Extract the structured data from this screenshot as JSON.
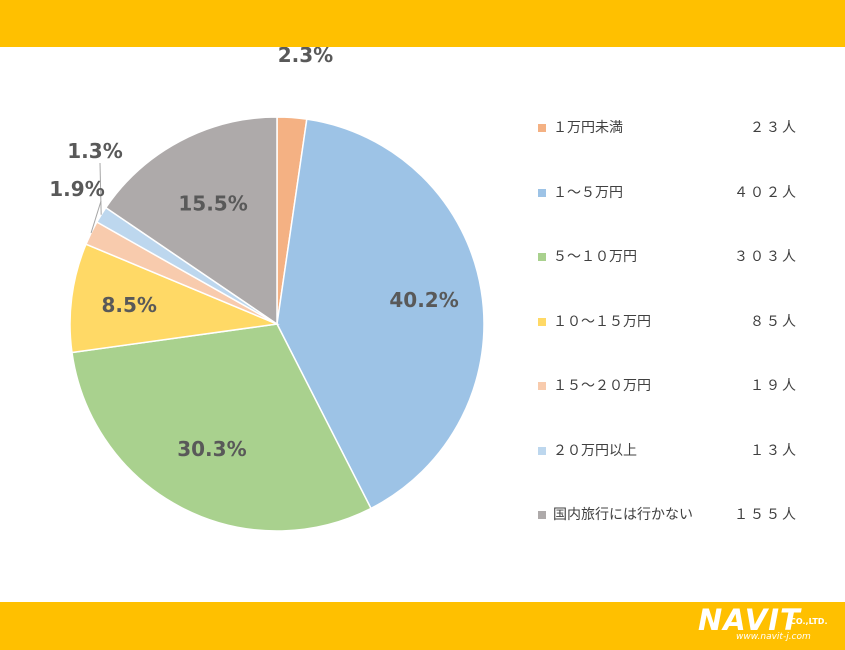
{
  "colors": {
    "band": "#FFC000",
    "slice_border": "#ffffff",
    "text": "#595959"
  },
  "logo": {
    "main": "NAVIT",
    "sub": "CO.,LTD.",
    "url": "www.navit-j.com"
  },
  "chart_data": {
    "type": "pie",
    "start_angle_deg": 0,
    "direction": "clockwise",
    "legend_position": "right",
    "slices": [
      {
        "label": "１万円未満",
        "count": "２３人",
        "value": 23,
        "percent_label": "2.3%",
        "color": "#F4B183"
      },
      {
        "label": "１～５万円",
        "count": "４０２人",
        "value": 402,
        "percent_label": "40.2%",
        "color": "#9DC3E6"
      },
      {
        "label": "５～１０万円",
        "count": "３０３人",
        "value": 303,
        "percent_label": "30.3%",
        "color": "#A9D18E"
      },
      {
        "label": "１０～１５万円",
        "count": "８５人",
        "value": 85,
        "percent_label": "8.5%",
        "color": "#FFD966"
      },
      {
        "label": "１５～２０万円",
        "count": "１９人",
        "value": 19,
        "percent_label": "1.9%",
        "color": "#F8CBAD"
      },
      {
        "label": "２０万円以上",
        "count": "１３人",
        "value": 13,
        "percent_label": "1.3%",
        "color": "#BDD7EE"
      },
      {
        "label": "国内旅行には行かない",
        "count": "１５５人",
        "value": 155,
        "percent_label": "15.5%",
        "color": "#AEAAAA"
      }
    ]
  }
}
